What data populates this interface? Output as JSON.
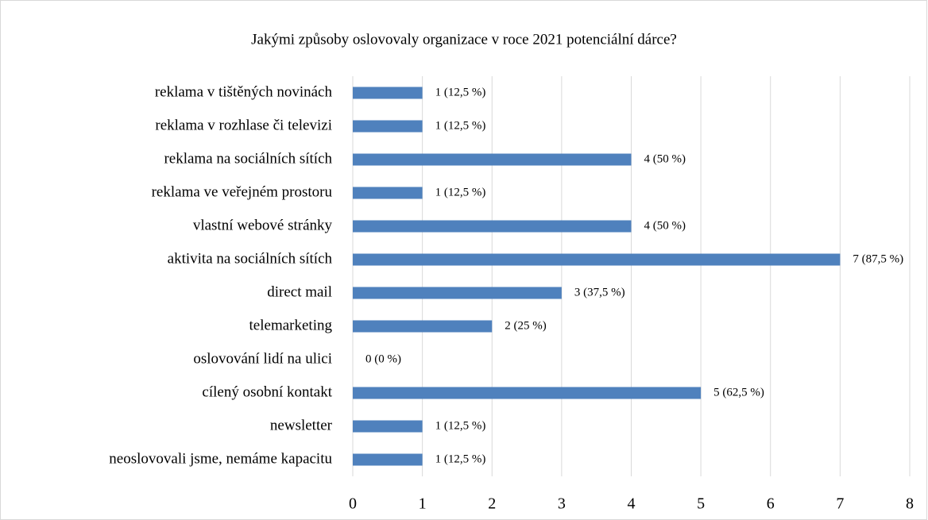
{
  "chart_data": {
    "type": "barh",
    "title": "Jakými způsoby oslovovaly organizace v roce 2021 potenciální dárce?",
    "categories": [
      "reklama v tištěných novinách",
      "reklama v rozhlase či televizi",
      "reklama na sociálních sítích",
      "reklama ve veřejném prostoru",
      "vlastní webové stránky",
      "aktivita na sociálních sítích",
      "direct mail",
      "telemarketing",
      "oslovování lidí na ulici",
      "cílený osobní kontakt",
      "newsletter",
      "neoslovovali jsme, nemáme kapacitu"
    ],
    "values": [
      1,
      1,
      4,
      1,
      4,
      7,
      3,
      2,
      0,
      5,
      1,
      1
    ],
    "value_labels": [
      "1 (12,5 %)",
      "1 (12,5 %)",
      "4 (50 %)",
      "1 (12,5 %)",
      "4 (50 %)",
      "7 (87,5 %)",
      "3 (37,5 %)",
      "2 (25 %)",
      "0 (0 %)",
      "5 (62,5 %)",
      "1 (12,5 %)",
      "1 (12,5 %)"
    ],
    "color": "#4f81bd",
    "xlim": [
      0,
      8
    ],
    "xticks": [
      0,
      1,
      2,
      3,
      4,
      5,
      6,
      7,
      8
    ],
    "grid": true
  }
}
